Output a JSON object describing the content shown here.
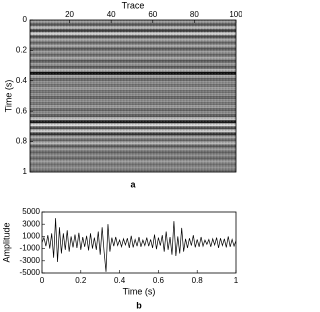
{
  "chart_data": [
    {
      "type": "image",
      "label": "a",
      "xlabel": "Trace",
      "ylabel": "Time (s)",
      "xlim": [
        1,
        100
      ],
      "xticks": [
        20,
        40,
        60,
        80,
        100
      ],
      "ylim": [
        0,
        1
      ],
      "yticks": [
        0,
        0.2,
        0.4,
        0.6,
        0.8,
        1
      ],
      "y": [
        0,
        0.02,
        0.04,
        0.06,
        0.08,
        0.1,
        0.12,
        0.14,
        0.16,
        0.18,
        0.2,
        0.22,
        0.24,
        0.26,
        0.28,
        0.3,
        0.32,
        0.34,
        0.36,
        0.38,
        0.4,
        0.42,
        0.44,
        0.46,
        0.48,
        0.5,
        0.52,
        0.54,
        0.56,
        0.58,
        0.6,
        0.62,
        0.64,
        0.66,
        0.68,
        0.7,
        0.72,
        0.74,
        0.76,
        0.78,
        0.8,
        0.82,
        0.84,
        0.86,
        0.88,
        0.9,
        0.92,
        0.94,
        0.96,
        0.98
      ],
      "values": [
        0.2,
        -0.3,
        0.4,
        -0.5,
        0.6,
        -0.4,
        0.3,
        -0.2,
        0.3,
        -0.3,
        0.2,
        -0.2,
        0.3,
        -0.3,
        0.2,
        -0.3,
        0.4,
        -0.9,
        0.3,
        -0.2,
        0.1,
        -0.1,
        0.2,
        -0.1,
        0.1,
        -0.2,
        0.1,
        -0.1,
        0.2,
        -0.2,
        0.1,
        -0.3,
        0.5,
        -0.8,
        0.7,
        -0.4,
        0.6,
        -0.6,
        0.3,
        -0.2,
        0.4,
        -0.3,
        0.2,
        -0.2,
        0.1,
        -0.2,
        0.2,
        -0.1,
        0.1,
        -0.1
      ]
    },
    {
      "type": "line",
      "label": "b",
      "xlabel": "Time (s)",
      "ylabel": "Amplitude",
      "xlim": [
        0,
        1
      ],
      "xticks": [
        0,
        0.2,
        0.4,
        0.6,
        0.8,
        1
      ],
      "ylim": [
        -5000,
        5000
      ],
      "yticks": [
        5000,
        3000,
        1000,
        -1000,
        -3000,
        -5000
      ],
      "color": "#000000",
      "x": [
        0,
        0.01,
        0.02,
        0.03,
        0.04,
        0.05,
        0.06,
        0.07,
        0.08,
        0.09,
        0.1,
        0.11,
        0.12,
        0.13,
        0.14,
        0.15,
        0.16,
        0.17,
        0.18,
        0.19,
        0.2,
        0.21,
        0.22,
        0.23,
        0.24,
        0.25,
        0.26,
        0.27,
        0.28,
        0.29,
        0.3,
        0.31,
        0.32,
        0.33,
        0.34,
        0.35,
        0.36,
        0.37,
        0.38,
        0.39,
        0.4,
        0.41,
        0.42,
        0.43,
        0.44,
        0.45,
        0.46,
        0.47,
        0.48,
        0.49,
        0.5,
        0.51,
        0.52,
        0.53,
        0.54,
        0.55,
        0.56,
        0.57,
        0.58,
        0.59,
        0.6,
        0.61,
        0.62,
        0.63,
        0.64,
        0.65,
        0.66,
        0.67,
        0.68,
        0.69,
        0.7,
        0.71,
        0.72,
        0.73,
        0.74,
        0.75,
        0.76,
        0.77,
        0.78,
        0.79,
        0.8,
        0.81,
        0.82,
        0.83,
        0.84,
        0.85,
        0.86,
        0.87,
        0.88,
        0.89,
        0.9,
        0.91,
        0.92,
        0.93,
        0.94,
        0.95,
        0.96,
        0.97,
        0.98,
        0.99,
        1
      ],
      "values": [
        0,
        800,
        -600,
        1200,
        -1000,
        1500,
        -2500,
        4000,
        -3200,
        2500,
        -1800,
        1500,
        -1200,
        2000,
        -1500,
        1000,
        -800,
        1300,
        -900,
        1600,
        -1200,
        900,
        -700,
        1100,
        -1300,
        1500,
        -1000,
        800,
        -1200,
        1800,
        -2000,
        2500,
        -1500,
        -4800,
        3000,
        -1500,
        800,
        -600,
        900,
        -500,
        400,
        -700,
        600,
        -400,
        700,
        -900,
        1100,
        -800,
        500,
        -600,
        900,
        -700,
        400,
        -500,
        800,
        -600,
        500,
        -900,
        1300,
        -1100,
        800,
        -500,
        1200,
        -1500,
        1800,
        -1200,
        900,
        -2000,
        3500,
        -2200,
        1000,
        -1800,
        2400,
        -1500,
        600,
        -900,
        700,
        -500,
        1200,
        -800,
        500,
        -700,
        900,
        -600,
        400,
        -300,
        500,
        -700,
        600,
        -400,
        800,
        -900,
        700,
        -500,
        600,
        -800,
        1000,
        -700,
        500,
        -600,
        300
      ]
    }
  ]
}
